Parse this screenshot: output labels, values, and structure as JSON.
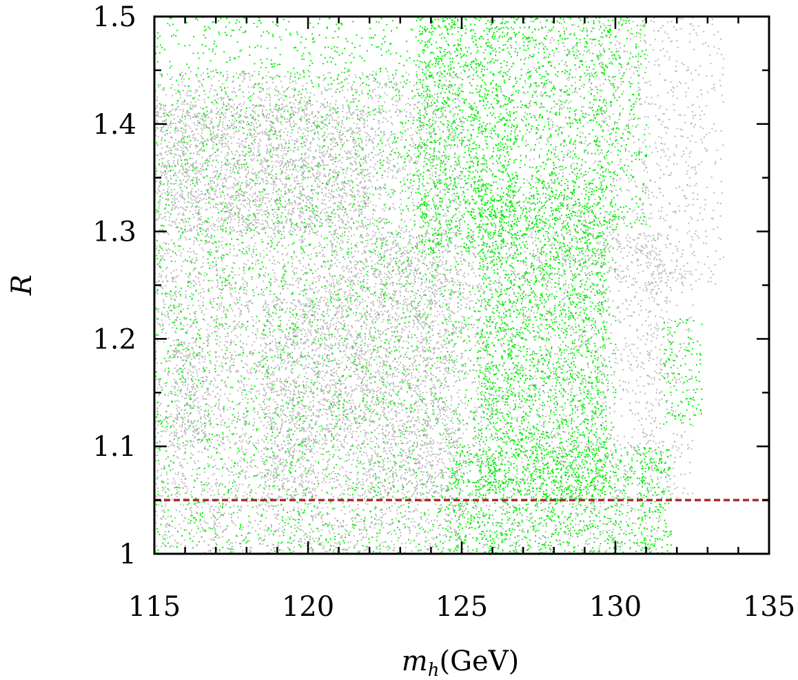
{
  "chart_data": {
    "type": "scatter",
    "title": "",
    "x_axis": {
      "label_var": "m",
      "label_sub": "h",
      "label_unit": "(GeV)",
      "min": 115,
      "max": 135,
      "major_ticks": [
        115,
        120,
        125,
        130,
        135
      ],
      "tick_labels": [
        "115",
        "120",
        "125",
        "130",
        "135"
      ],
      "minor_step": 1
    },
    "y_axis": {
      "label_var": "R",
      "min": 1.0,
      "max": 1.5,
      "major_ticks": [
        1.0,
        1.1,
        1.2,
        1.3,
        1.4,
        1.5
      ],
      "tick_labels": [
        "1",
        "1.1",
        "1.2",
        "1.3",
        "1.4",
        "1.5"
      ],
      "minor_step": 0.05
    },
    "grid": false,
    "legend": "none",
    "series": [
      {
        "color": "#b8b8b8",
        "point_regions": [
          {
            "x": [
              115,
              125
            ],
            "y": [
              1.0,
              1.45
            ],
            "density": 0.8
          },
          {
            "x": [
              115,
              122
            ],
            "y": [
              1.3,
              1.42
            ],
            "density": 1.0
          },
          {
            "x": [
              115.6,
              116.8
            ],
            "y": [
              1.1,
              1.2
            ],
            "density": 1.0
          },
          {
            "x": [
              118.5,
              120.3
            ],
            "y": [
              1.05,
              1.24
            ],
            "density": 1.0
          },
          {
            "x": [
              120.3,
              121.7
            ],
            "y": [
              1.1,
              1.26
            ],
            "density": 1.0
          },
          {
            "x": [
              121.7,
              124.5
            ],
            "y": [
              1.05,
              1.3
            ],
            "density": 0.8
          },
          {
            "x": [
              124.5,
              131.5
            ],
            "y": [
              1.0,
              1.3
            ],
            "density": 0.5
          },
          {
            "x": [
              127.0,
              133.5
            ],
            "y": [
              1.25,
              1.5
            ],
            "density": 0.4
          },
          {
            "x": [
              131.0,
              132.5
            ],
            "y": [
              1.05,
              1.3
            ],
            "density": 0.4
          }
        ]
      },
      {
        "color": "#00ee00",
        "point_regions": [
          {
            "x": [
              115,
              130
            ],
            "y": [
              1.0,
              1.5
            ],
            "density": 0.35
          },
          {
            "x": [
              123.5,
              126.8
            ],
            "y": [
              1.28,
              1.5
            ],
            "density": 1.0
          },
          {
            "x": [
              125.5,
              129.7
            ],
            "y": [
              1.05,
              1.35
            ],
            "density": 0.9
          },
          {
            "x": [
              124.5,
              131.0
            ],
            "y": [
              1.0,
              1.1
            ],
            "density": 0.7
          },
          {
            "x": [
              130.8,
              131.8
            ],
            "y": [
              1.0,
              1.1
            ],
            "density": 1.0
          },
          {
            "x": [
              131.5,
              132.8
            ],
            "y": [
              1.12,
              1.22
            ],
            "density": 0.6
          },
          {
            "x": [
              127.0,
              131.0
            ],
            "y": [
              1.3,
              1.5
            ],
            "density": 0.5
          }
        ]
      }
    ],
    "reference_lines": [
      {
        "orientation": "horizontal",
        "y": 1.05,
        "color": "#a52a2a",
        "style": "dashed"
      }
    ]
  }
}
